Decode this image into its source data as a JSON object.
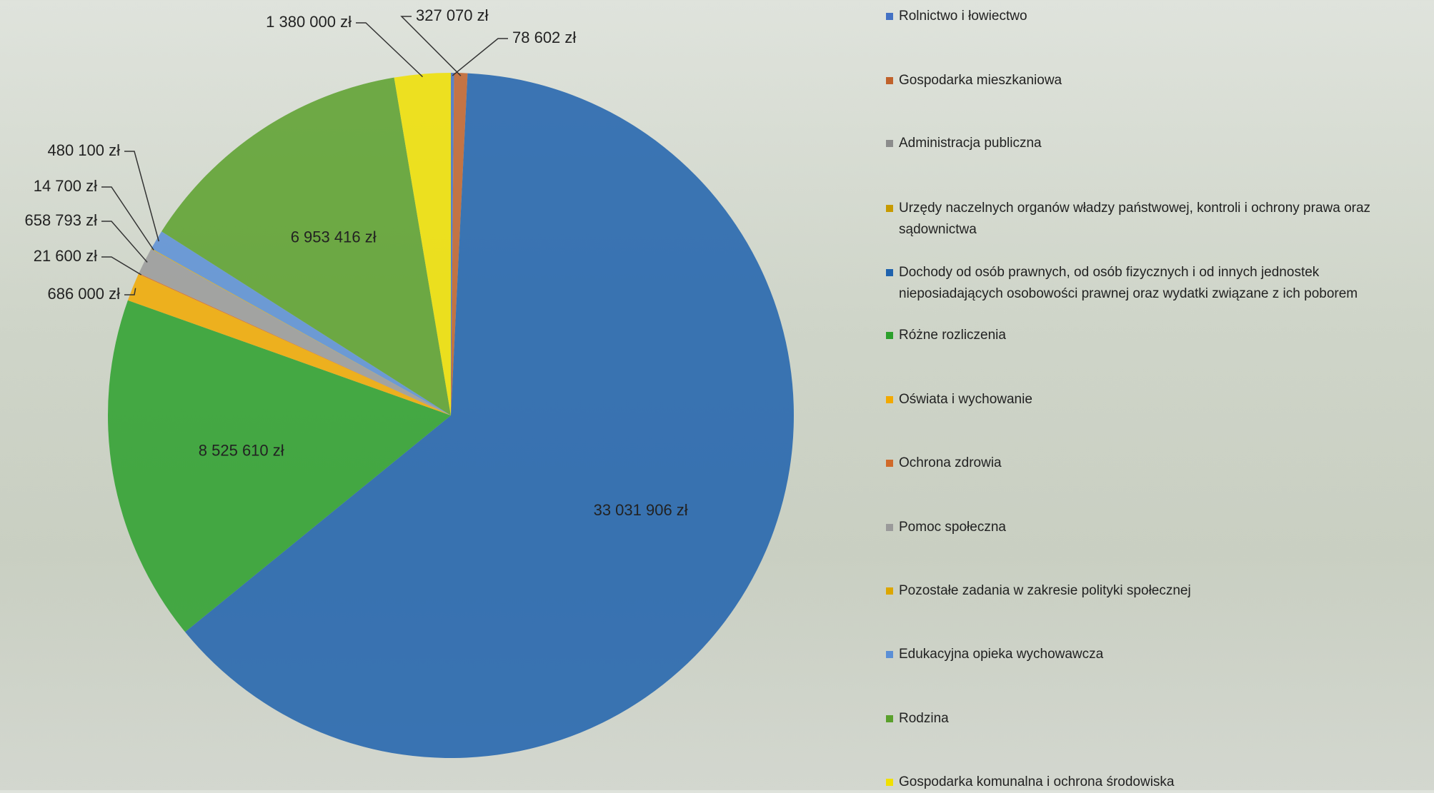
{
  "chart_data": {
    "type": "pie",
    "categories": [
      "Rolnictwo i łowiectwo",
      "Gospodarka mieszkaniowa",
      "Administracja publiczna",
      "Urzędy naczelnych organów władzy państwowej, kontroli i ochrony prawa oraz sądownictwa",
      "Dochody od osób prawnych, od osób fizycznych i od innych jednostek nieposiadających osobowości prawnej oraz wydatki związane z ich poborem",
      "Różne rozliczenia",
      "Oświata i wychowanie",
      "Ochrona zdrowia",
      "Pomoc społeczna",
      "Pozostałe zadania w zakresie polityki społecznej",
      "Edukacyjna opieka wychowawcza",
      "Rodzina",
      "Gospodarka komunalna i ochrona środowiska"
    ],
    "values": [
      78602,
      327070,
      0,
      0,
      33031906,
      8525610,
      686000,
      21600,
      658793,
      14700,
      480100,
      6953416,
      1380000
    ],
    "value_labels": [
      "78 602 zł",
      "327 070 zł",
      null,
      null,
      "33 031 906 zł",
      "8 525 610 zł",
      "686 000 zł",
      "21 600 zł",
      "658 793 zł",
      "14 700 zł",
      "480 100 zł",
      "6 953 416 zł",
      "1 380 000 zł"
    ],
    "colors": [
      "#4472c4",
      "#c0622b",
      "#8c8c8c",
      "#c79a00",
      "#1f62ad",
      "#2ca02c",
      "#f2a900",
      "#d06a2a",
      "#9a9a9a",
      "#dca600",
      "#5b8fd6",
      "#5aa02c",
      "#f0e000"
    ]
  }
}
